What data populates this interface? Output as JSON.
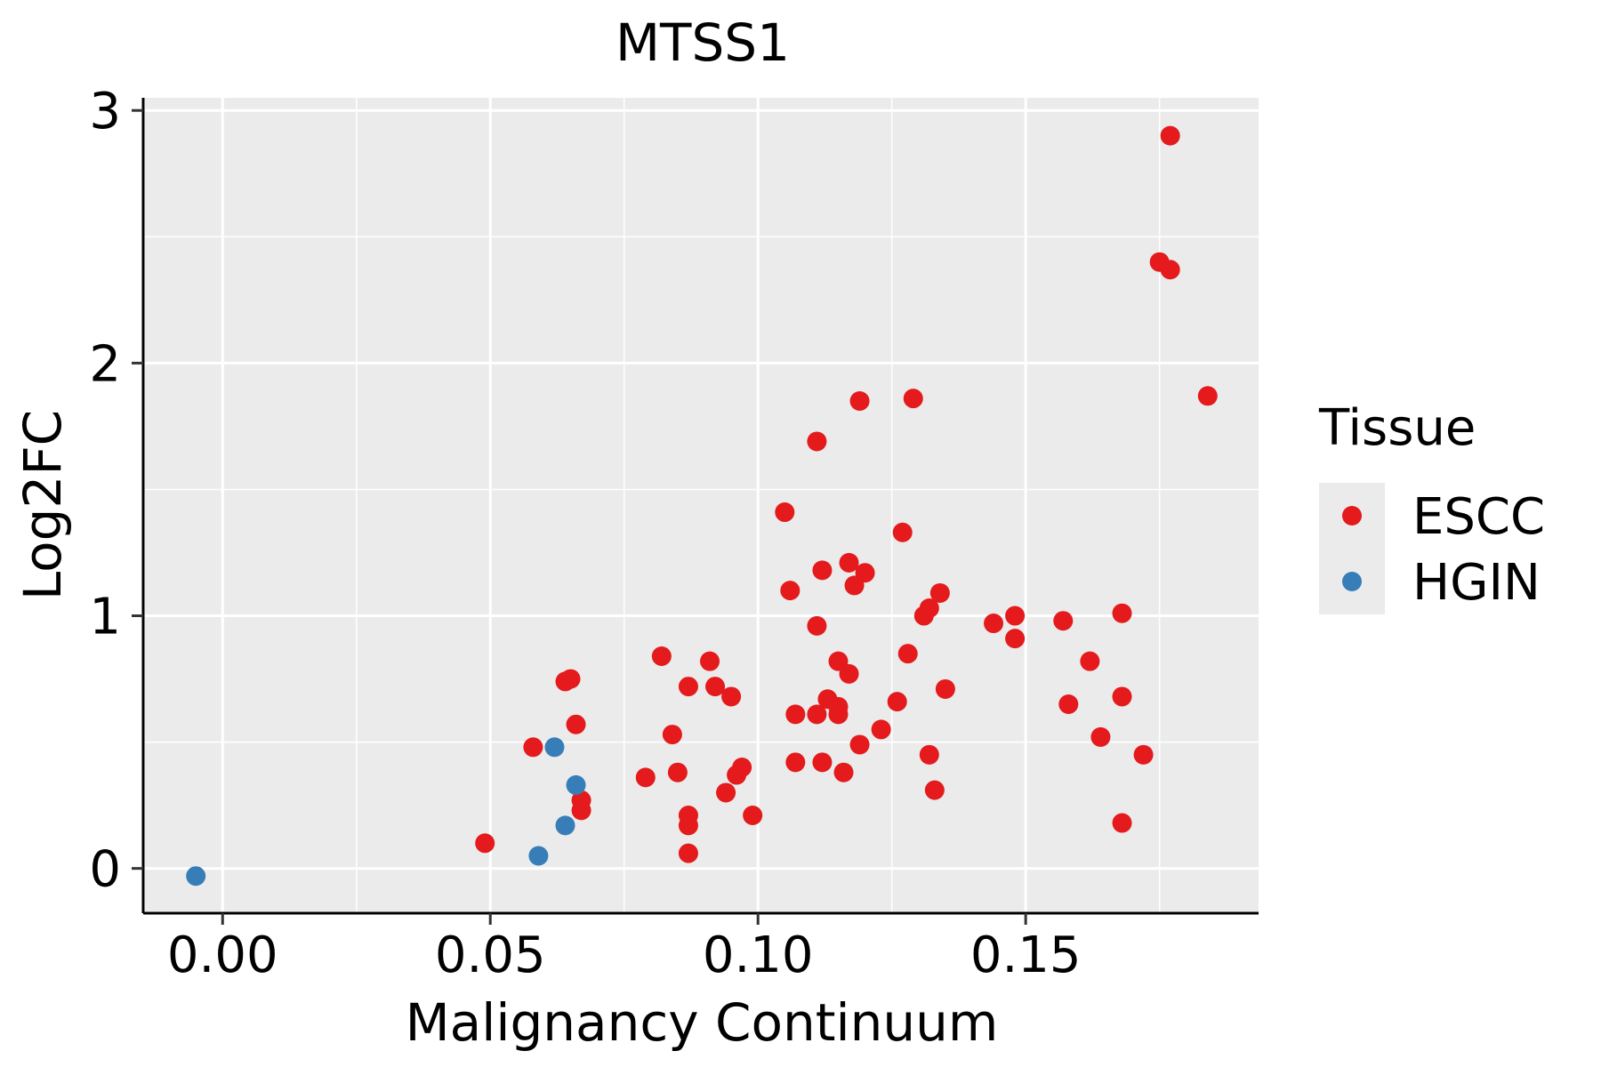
{
  "chart_data": {
    "type": "scatter",
    "title": "MTSS1",
    "xlabel": "Malignancy Continuum",
    "ylabel": "Log2FC",
    "xlim": [
      -0.0145,
      0.1935
    ],
    "ylim": [
      -0.17,
      3.05
    ],
    "x_ticks": [
      0.0,
      0.05,
      0.1,
      0.15
    ],
    "x_tick_labels": [
      "0.00",
      "0.05",
      "0.10",
      "0.15"
    ],
    "y_ticks": [
      0,
      1,
      2,
      3
    ],
    "y_tick_labels": [
      "0",
      "1",
      "2",
      "3"
    ],
    "grid": true,
    "legend": {
      "title": "Tissue",
      "position": "right",
      "entries": [
        {
          "name": "ESCC",
          "color": "#E41A1C"
        },
        {
          "name": "HGIN",
          "color": "#377EB8"
        }
      ]
    },
    "series": [
      {
        "name": "ESCC",
        "color": "#E41A1C",
        "points": [
          [
            0.049,
            0.1
          ],
          [
            0.058,
            0.48
          ],
          [
            0.064,
            0.74
          ],
          [
            0.065,
            0.75
          ],
          [
            0.066,
            0.57
          ],
          [
            0.067,
            0.27
          ],
          [
            0.067,
            0.23
          ],
          [
            0.079,
            0.36
          ],
          [
            0.082,
            0.84
          ],
          [
            0.084,
            0.53
          ],
          [
            0.085,
            0.38
          ],
          [
            0.087,
            0.72
          ],
          [
            0.087,
            0.21
          ],
          [
            0.087,
            0.17
          ],
          [
            0.087,
            0.06
          ],
          [
            0.091,
            0.82
          ],
          [
            0.092,
            0.72
          ],
          [
            0.094,
            0.3
          ],
          [
            0.095,
            0.68
          ],
          [
            0.096,
            0.37
          ],
          [
            0.097,
            0.4
          ],
          [
            0.099,
            0.21
          ],
          [
            0.105,
            1.41
          ],
          [
            0.106,
            1.1
          ],
          [
            0.107,
            0.61
          ],
          [
            0.107,
            0.42
          ],
          [
            0.111,
            0.61
          ],
          [
            0.111,
            0.96
          ],
          [
            0.111,
            1.69
          ],
          [
            0.112,
            1.18
          ],
          [
            0.112,
            0.42
          ],
          [
            0.113,
            0.67
          ],
          [
            0.115,
            0.82
          ],
          [
            0.115,
            0.64
          ],
          [
            0.115,
            0.61
          ],
          [
            0.116,
            0.38
          ],
          [
            0.117,
            0.77
          ],
          [
            0.117,
            1.21
          ],
          [
            0.118,
            1.12
          ],
          [
            0.119,
            1.85
          ],
          [
            0.119,
            0.49
          ],
          [
            0.12,
            1.17
          ],
          [
            0.123,
            0.55
          ],
          [
            0.126,
            0.66
          ],
          [
            0.127,
            1.33
          ],
          [
            0.128,
            0.85
          ],
          [
            0.129,
            1.86
          ],
          [
            0.131,
            1.0
          ],
          [
            0.132,
            1.03
          ],
          [
            0.132,
            0.45
          ],
          [
            0.133,
            0.31
          ],
          [
            0.134,
            1.09
          ],
          [
            0.135,
            0.71
          ],
          [
            0.144,
            0.97
          ],
          [
            0.148,
            0.91
          ],
          [
            0.148,
            1.0
          ],
          [
            0.157,
            0.98
          ],
          [
            0.158,
            0.65
          ],
          [
            0.162,
            0.82
          ],
          [
            0.164,
            0.52
          ],
          [
            0.168,
            1.01
          ],
          [
            0.168,
            0.68
          ],
          [
            0.168,
            0.18
          ],
          [
            0.172,
            0.45
          ],
          [
            0.175,
            2.4
          ],
          [
            0.177,
            2.37
          ],
          [
            0.177,
            2.9
          ],
          [
            0.184,
            1.87
          ]
        ]
      },
      {
        "name": "HGIN",
        "color": "#377EB8",
        "points": [
          [
            -0.005,
            -0.03
          ],
          [
            0.059,
            0.05
          ],
          [
            0.062,
            0.48
          ],
          [
            0.064,
            0.17
          ],
          [
            0.066,
            0.33
          ]
        ]
      }
    ]
  }
}
